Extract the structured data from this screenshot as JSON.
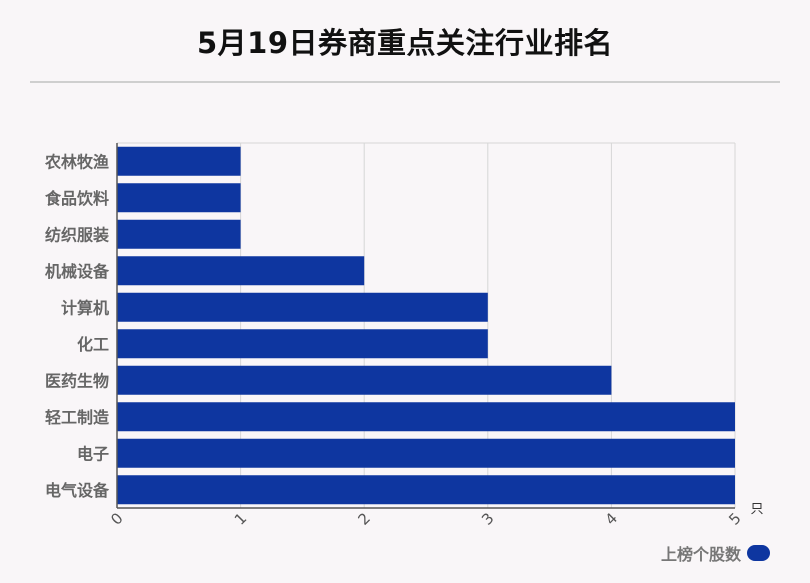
{
  "title": "5月19日券商重点关注行业排名",
  "legend": {
    "label": "上榜个股数",
    "color": "#0e36a0"
  },
  "chart_data": {
    "type": "bar",
    "orientation": "horizontal",
    "title": "5月19日券商重点关注行业排名",
    "categories": [
      "农林牧渔",
      "食品饮料",
      "纺织服装",
      "机械设备",
      "计算机",
      "化工",
      "医药生物",
      "轻工制造",
      "电子",
      "电气设备"
    ],
    "series": [
      {
        "name": "上榜个股数",
        "values": [
          1,
          1,
          1,
          2,
          3,
          3,
          4,
          5,
          5,
          5
        ],
        "color": "#0e36a0"
      }
    ],
    "x_ticks": [
      "0",
      "1",
      "2",
      "3",
      "4",
      "5"
    ],
    "xlim": [
      0,
      5
    ],
    "x_unit": "只",
    "grid": true,
    "legend_position": "bottom-right"
  }
}
